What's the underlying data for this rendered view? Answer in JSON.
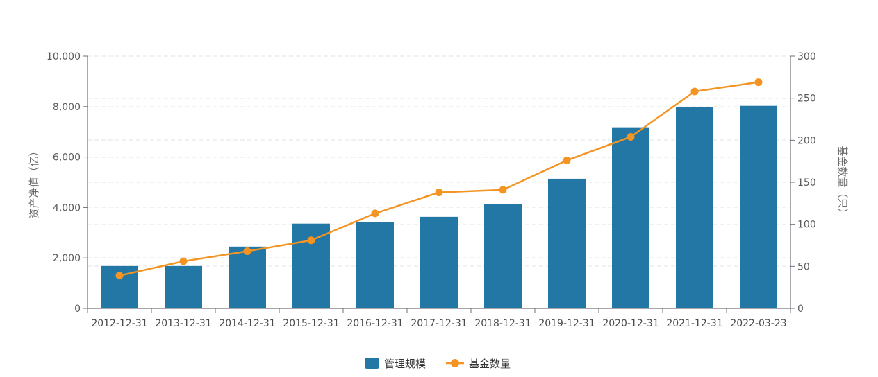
{
  "chart_data": {
    "type": "bar",
    "categories": [
      "2012-12-31",
      "2013-12-31",
      "2014-12-31",
      "2015-12-31",
      "2016-12-31",
      "2017-12-31",
      "2018-12-31",
      "2019-12-31",
      "2020-12-31",
      "2021-12-31",
      "2022-03-23"
    ],
    "series": [
      {
        "name": "管理规模",
        "type": "bar",
        "axis": "left",
        "color": "#2377a4",
        "values": [
          1680,
          1680,
          2450,
          3360,
          3410,
          3630,
          4140,
          5140,
          7180,
          7970,
          8030
        ]
      },
      {
        "name": "基金数量",
        "type": "line",
        "axis": "right",
        "color": "#f39423",
        "values": [
          39,
          56,
          68,
          81,
          113,
          138,
          141,
          176,
          204,
          258,
          269
        ]
      }
    ],
    "y_left": {
      "label": "资产净值（亿）",
      "min": 0,
      "max": 10000,
      "ticks": [
        "0",
        "2,000",
        "4,000",
        "6,000",
        "8,000",
        "10,000"
      ]
    },
    "y_right": {
      "label": "基金数量（只）",
      "min": 0,
      "max": 300,
      "ticks": [
        "0",
        "50",
        "100",
        "150",
        "200",
        "250",
        "300"
      ]
    },
    "grid": true,
    "legend_position": "bottom-center"
  }
}
